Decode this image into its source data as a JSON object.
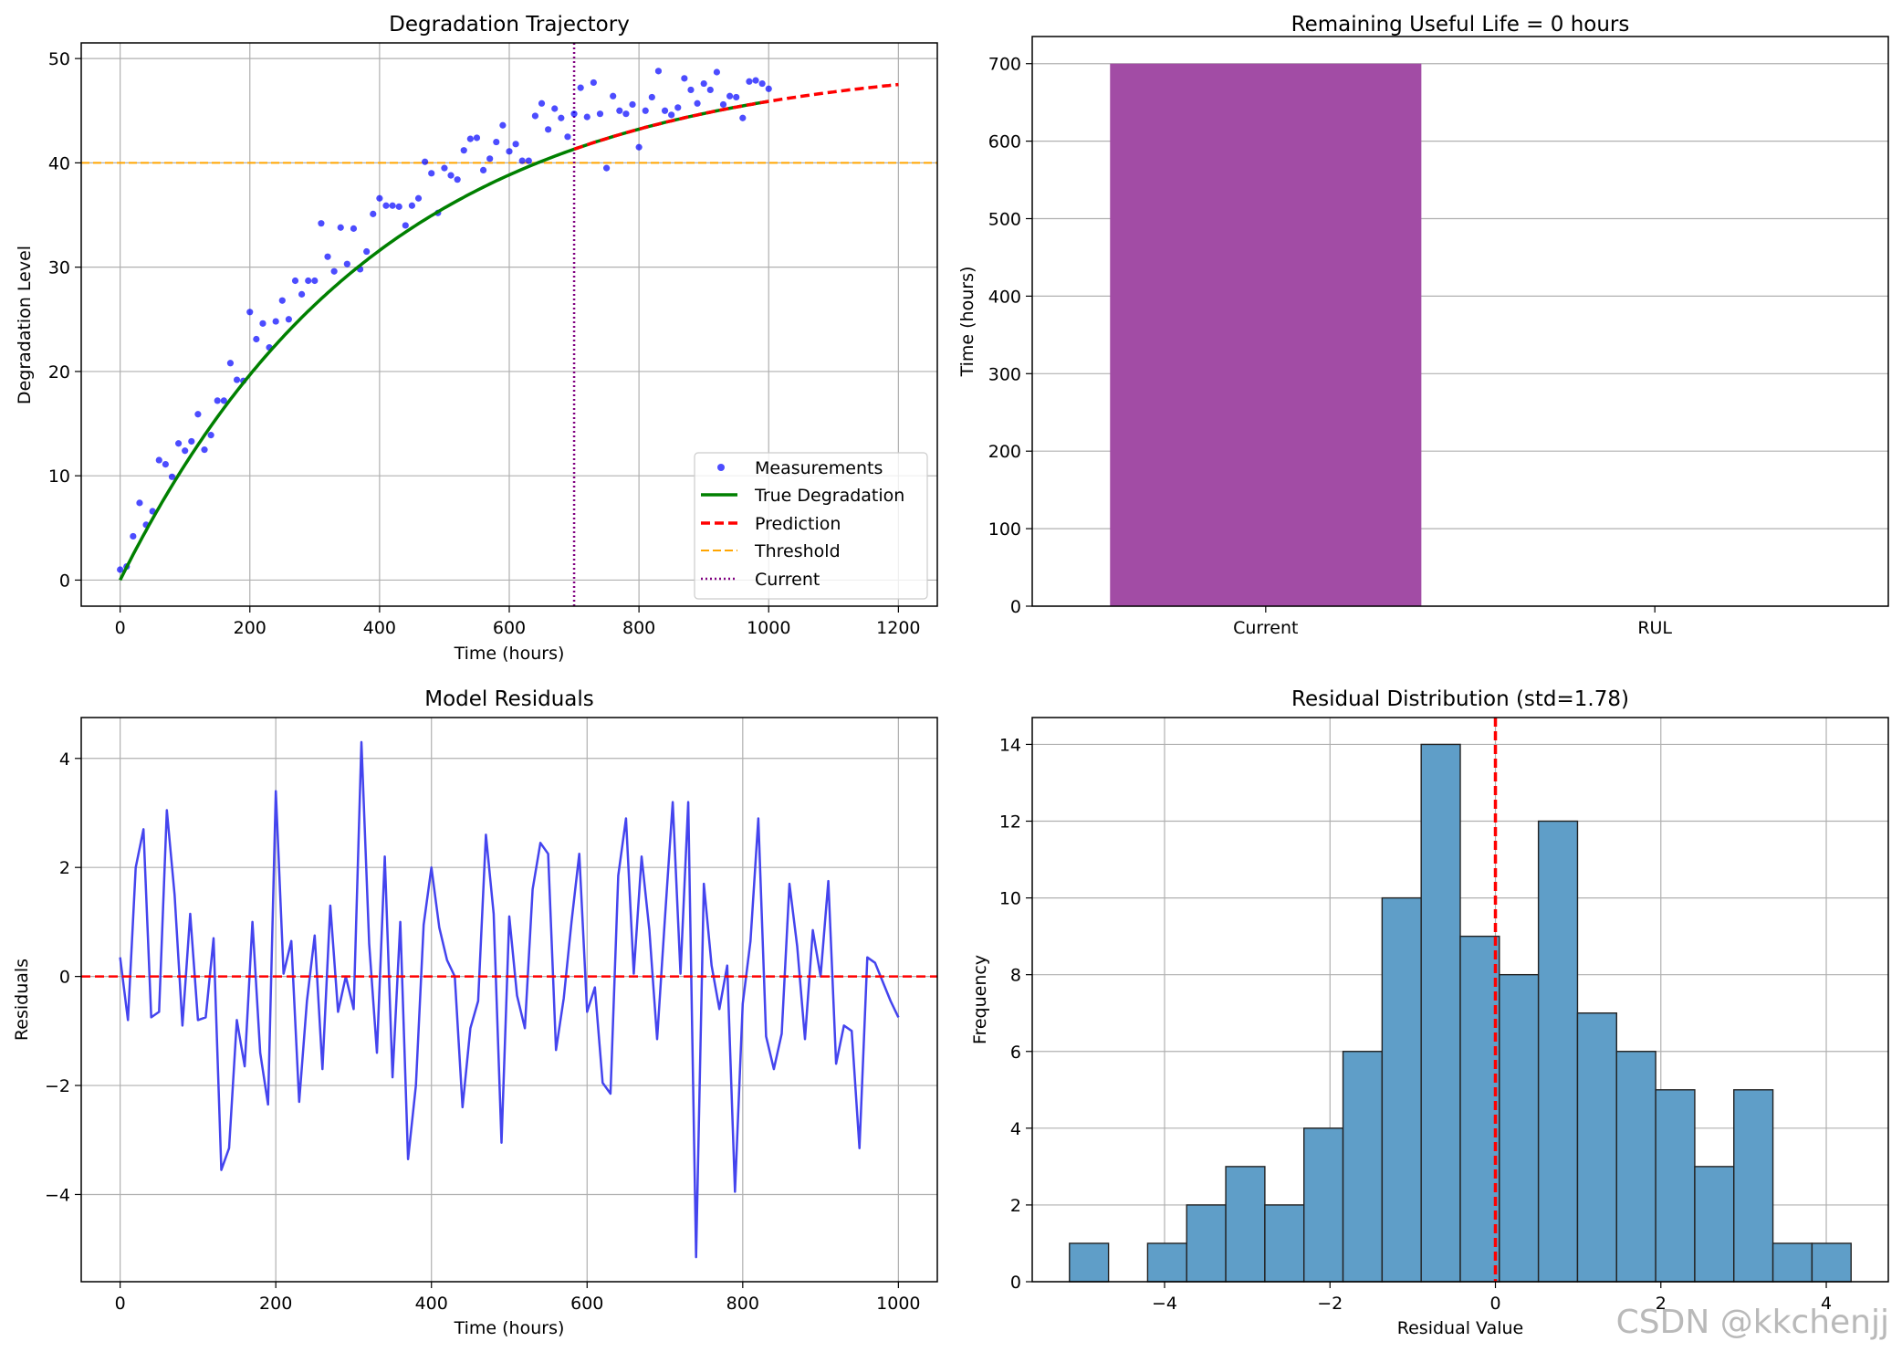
{
  "watermark": "CSDN @kkchenjj",
  "chart_data": [
    {
      "id": "degradation",
      "type": "scatter+line",
      "title": "Degradation Trajectory",
      "xlabel": "Time (hours)",
      "ylabel": "Degradation Level",
      "xlim": [
        -60,
        1260
      ],
      "ylim": [
        -2.5,
        51.5
      ],
      "xticks": [
        0,
        200,
        400,
        600,
        800,
        1000,
        1200
      ],
      "yticks": [
        0,
        10,
        20,
        30,
        40,
        50
      ],
      "grid": true,
      "legend_position": "lower-right",
      "legend": [
        "Measurements",
        "True Degradation",
        "Prediction",
        "Threshold",
        "Current"
      ],
      "colors": {
        "measurements": "#0000ff",
        "true": "#008000",
        "prediction": "#ff0000",
        "threshold": "#ffa500",
        "current": "#800080"
      },
      "threshold": 40,
      "current_time": 700,
      "true_curve": {
        "asymptote": 50,
        "tau": 400,
        "x_end": 1000
      },
      "prediction_curve": {
        "asymptote": 50,
        "tau": 400,
        "x_start": 700,
        "x_end": 1200
      },
      "measurements": {
        "x": [
          0,
          10,
          20,
          30,
          40,
          50,
          60,
          70,
          80,
          90,
          100,
          110,
          120,
          130,
          140,
          150,
          160,
          170,
          180,
          190,
          200,
          210,
          220,
          230,
          240,
          250,
          260,
          270,
          280,
          290,
          300,
          310,
          320,
          330,
          340,
          350,
          360,
          370,
          380,
          390,
          400,
          410,
          420,
          430,
          440,
          450,
          460,
          470,
          480,
          490,
          500,
          510,
          520,
          530,
          540,
          550,
          560,
          570,
          580,
          590,
          600,
          610,
          620,
          630,
          640,
          650,
          660,
          670,
          680,
          690,
          700,
          710,
          720,
          730,
          740,
          750,
          760,
          770,
          780,
          790,
          800,
          810,
          820,
          830,
          840,
          850,
          860,
          870,
          880,
          890,
          900,
          910,
          920,
          930,
          940,
          950,
          960,
          970,
          980,
          990,
          1000
        ],
        "y": [
          1.0,
          1.3,
          4.2,
          7.4,
          5.3,
          6.6,
          11.5,
          11.1,
          9.9,
          13.1,
          12.4,
          13.3,
          15.9,
          12.5,
          13.9,
          17.2,
          17.2,
          20.8,
          19.2,
          19.1,
          25.7,
          23.1,
          24.6,
          22.3,
          24.8,
          26.8,
          25.0,
          28.7,
          27.4,
          28.7,
          28.7,
          34.2,
          31.0,
          29.6,
          33.8,
          30.3,
          33.7,
          29.8,
          31.5,
          35.1,
          36.6,
          35.9,
          35.9,
          35.8,
          34.0,
          35.9,
          36.6,
          40.1,
          39.0,
          35.2,
          39.5,
          38.8,
          38.4,
          41.2,
          42.3,
          42.4,
          39.3,
          40.4,
          42.0,
          43.6,
          41.1,
          41.8,
          40.2,
          40.2,
          44.5,
          45.7,
          43.2,
          45.2,
          44.3,
          42.5,
          44.7,
          47.2,
          44.4,
          47.7,
          44.7,
          39.5,
          46.4,
          45.0,
          44.7,
          45.6,
          41.5,
          45.0,
          46.3,
          48.8,
          45.0,
          44.6,
          45.3,
          48.1,
          47.0,
          45.7,
          47.6,
          47.0,
          48.7,
          45.6,
          46.4,
          46.3,
          44.3,
          47.8,
          47.9,
          47.6,
          47.1
        ]
      }
    },
    {
      "id": "rul",
      "type": "bar",
      "title": "Remaining Useful Life = 0 hours",
      "ylabel": "Time (hours)",
      "categories": [
        "Current",
        "RUL"
      ],
      "values": [
        700,
        0
      ],
      "color": "#a24ca5",
      "ylim": [
        0,
        735
      ],
      "yticks": [
        0,
        100,
        200,
        300,
        400,
        500,
        600,
        700
      ],
      "grid": "y"
    },
    {
      "id": "residuals",
      "type": "line",
      "title": "Model Residuals",
      "xlabel": "Time (hours)",
      "ylabel": "Residuals",
      "xlim": [
        -50,
        1050
      ],
      "ylim": [
        -5.6,
        4.75
      ],
      "xticks": [
        0,
        200,
        400,
        600,
        800,
        1000
      ],
      "yticks": [
        -4,
        -2,
        0,
        2,
        4
      ],
      "grid": true,
      "zero_line": 0,
      "color": "#4444ee",
      "zero_color": "#ff0000",
      "x": [
        0,
        10,
        20,
        30,
        40,
        50,
        60,
        70,
        80,
        90,
        100,
        110,
        120,
        130,
        140,
        150,
        160,
        170,
        180,
        190,
        200,
        210,
        220,
        230,
        240,
        250,
        260,
        270,
        280,
        290,
        300,
        310,
        320,
        330,
        340,
        350,
        360,
        370,
        380,
        390,
        400,
        410,
        420,
        430,
        440,
        450,
        460,
        470,
        480,
        490,
        500,
        510,
        520,
        530,
        540,
        550,
        560,
        570,
        580,
        590,
        600,
        610,
        620,
        630,
        640,
        650,
        660,
        670,
        680,
        690,
        700,
        710,
        720,
        730,
        740,
        750,
        760,
        770,
        780,
        790,
        800,
        810,
        820,
        830,
        840,
        850,
        860,
        870,
        880,
        890,
        900,
        910,
        920,
        930,
        940,
        950,
        960,
        970,
        980,
        990,
        1000
      ],
      "values": [
        0.35,
        -0.8,
        2.0,
        2.7,
        -0.75,
        -0.65,
        3.05,
        1.5,
        -0.9,
        1.15,
        -0.8,
        -0.75,
        0.7,
        -3.55,
        -3.15,
        -0.8,
        -1.65,
        1.0,
        -1.4,
        -2.35,
        3.4,
        0.05,
        0.65,
        -2.3,
        -0.45,
        0.75,
        -1.7,
        1.3,
        -0.65,
        0.0,
        -0.6,
        4.3,
        0.6,
        -1.4,
        2.2,
        -1.85,
        1.0,
        -3.35,
        -2.0,
        0.95,
        2.0,
        0.9,
        0.3,
        0.0,
        -2.4,
        -0.95,
        -0.45,
        2.6,
        1.15,
        -3.05,
        1.1,
        -0.35,
        -0.95,
        1.6,
        2.45,
        2.25,
        -1.35,
        -0.4,
        1.0,
        2.25,
        -0.65,
        -0.2,
        -1.95,
        -2.15,
        1.85,
        2.9,
        0.05,
        2.2,
        0.85,
        -1.15,
        1.05,
        3.2,
        0.05,
        3.2,
        -5.15,
        1.7,
        0.2,
        -0.6,
        0.2,
        -3.95,
        -0.5,
        0.65,
        2.9,
        -1.1,
        -1.7,
        -1.05,
        1.7,
        0.55,
        -1.15,
        0.85,
        0.0,
        1.75,
        -1.6,
        -0.9,
        -1.0,
        -3.15,
        0.35,
        0.25,
        -0.1,
        -0.45,
        -0.75
      ]
    },
    {
      "id": "histogram",
      "type": "histogram",
      "title": "Residual Distribution (std=1.78)",
      "xlabel": "Residual Value",
      "ylabel": "Frequency",
      "xlim": [
        -5.6,
        4.75
      ],
      "ylim": [
        0,
        14.7
      ],
      "xticks": [
        -4,
        -2,
        0,
        2,
        4
      ],
      "yticks": [
        0,
        2,
        4,
        6,
        8,
        10,
        12,
        14
      ],
      "grid": true,
      "color": "#5f9ec8",
      "mean_line": 0,
      "mean_color": "#ff0000",
      "bin_start": -5.15,
      "bin_width": 0.4725,
      "counts": [
        1,
        0,
        1,
        2,
        3,
        2,
        4,
        6,
        10,
        14,
        9,
        8,
        12,
        7,
        6,
        5,
        3,
        5,
        1,
        1
      ]
    }
  ]
}
